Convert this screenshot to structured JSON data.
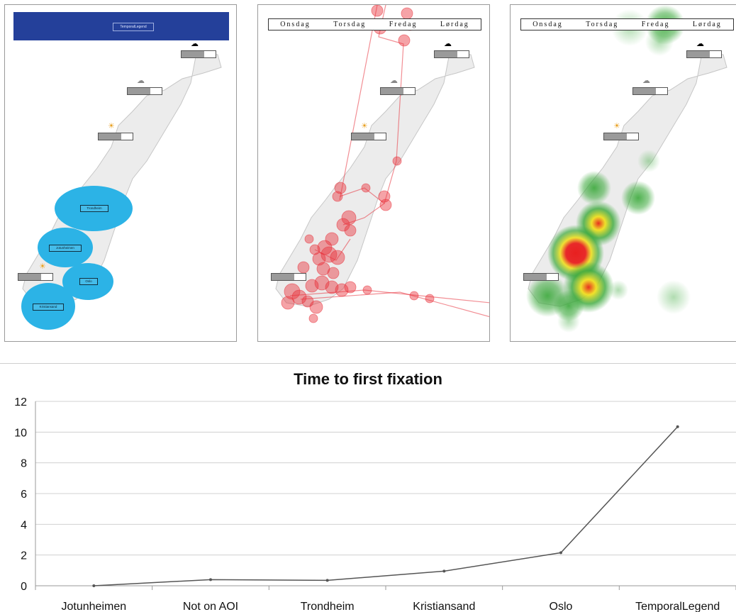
{
  "panels": {
    "aoi": {
      "legend_label": "TemporalLegend",
      "aois": [
        {
          "name": "Trondheim"
        },
        {
          "name": "Jotunheimen"
        },
        {
          "name": "Oslo"
        },
        {
          "name": "Kristiansand"
        }
      ],
      "colors": {
        "legend_bar": "#24409a",
        "aoi_fill": "#2cb3e6"
      }
    },
    "gaze_plot": {
      "days": [
        "Onsdag",
        "Torsdag",
        "Fredag",
        "Lørdag"
      ],
      "colors": {
        "fixation": "#e8323c"
      }
    },
    "heatmap": {
      "days": [
        "Onsdag",
        "Torsdag",
        "Fredag",
        "Lørdag"
      ],
      "colors": {
        "low": "#3aa83a",
        "mid": "#f0e020",
        "high": "#e82020"
      }
    },
    "weather_icons": [
      "rain-cloud-icon",
      "cloud-icon",
      "sun-cloud-icon"
    ]
  },
  "chart_data": {
    "type": "line",
    "title": "Time to first fixation",
    "xlabel": "",
    "ylabel": "",
    "categories": [
      "Jotunheimen",
      "Not on AOI",
      "Trondheim",
      "Kristiansand",
      "Oslo",
      "TemporalLegend"
    ],
    "values": [
      0.0,
      0.4,
      0.35,
      0.95,
      2.15,
      10.35
    ],
    "ylim": [
      0,
      12
    ],
    "yticks": [
      "0",
      "2",
      "4",
      "6",
      "8",
      "10",
      "12"
    ],
    "grid": true,
    "color": "#555555"
  }
}
